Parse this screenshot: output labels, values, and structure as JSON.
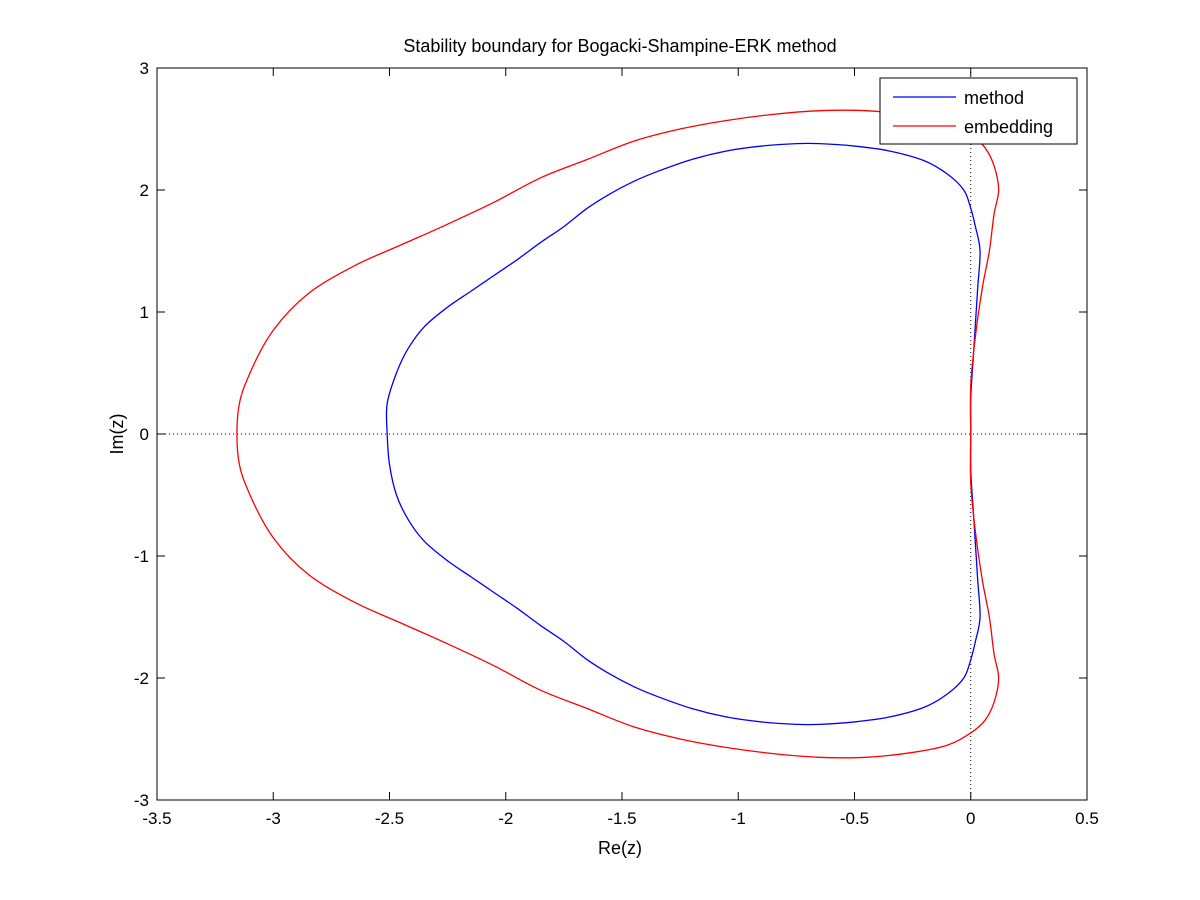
{
  "chart_data": {
    "type": "line",
    "title": "Stability boundary for Bogacki-Shampine-ERK method",
    "xlabel": "Re(z)",
    "ylabel": "Im(z)",
    "xlim": [
      -3.5,
      0.5
    ],
    "ylim": [
      -3,
      3
    ],
    "xticks": [
      -3.5,
      -3,
      -2.5,
      -2,
      -1.5,
      -1,
      -0.5,
      0,
      0.5
    ],
    "xtick_labels": [
      "-3.5",
      "-3",
      "-2.5",
      "-2",
      "-1.5",
      "-1",
      "-0.5",
      "0",
      "0.5"
    ],
    "yticks": [
      -3,
      -2,
      -1,
      0,
      1,
      2,
      3
    ],
    "ytick_labels": [
      "-3",
      "-2",
      "-1",
      "0",
      "1",
      "2",
      "3"
    ],
    "grid": false,
    "legend_position": "top-right",
    "reference_lines": {
      "x_axis_dotted": true,
      "y_axis_dotted": true
    },
    "series": [
      {
        "name": "method",
        "color": "#0000ff",
        "x": [
          0.0,
          0.0,
          0.01,
          0.02,
          0.03,
          0.04,
          0.02,
          0.0,
          -0.03,
          -0.1,
          -0.2,
          -0.35,
          -0.5,
          -0.65,
          -0.75,
          -0.9,
          -1.05,
          -1.2,
          -1.35,
          -1.45,
          -1.55,
          -1.65,
          -1.75,
          -1.85,
          -1.95,
          -2.05,
          -2.15,
          -2.25,
          -2.35,
          -2.42,
          -2.47,
          -2.51,
          -2.51,
          -2.5,
          -2.47,
          -2.42,
          -2.35,
          -2.25,
          -2.15,
          -2.05,
          -1.95,
          -1.85,
          -1.75,
          -1.65,
          -1.55,
          -1.45,
          -1.35,
          -1.2,
          -1.05,
          -0.9,
          -0.75,
          -0.65,
          -0.5,
          -0.35,
          -0.2,
          -0.1,
          -0.03,
          0.0,
          0.02,
          0.04,
          0.03,
          0.02,
          0.01,
          0.0,
          0.0
        ],
        "y": [
          0.0,
          0.3,
          0.6,
          0.9,
          1.2,
          1.5,
          1.7,
          1.85,
          2.0,
          2.13,
          2.24,
          2.32,
          2.36,
          2.38,
          2.38,
          2.36,
          2.32,
          2.25,
          2.15,
          2.07,
          1.97,
          1.85,
          1.7,
          1.57,
          1.43,
          1.3,
          1.17,
          1.04,
          0.88,
          0.7,
          0.5,
          0.25,
          0.0,
          -0.25,
          -0.5,
          -0.7,
          -0.88,
          -1.04,
          -1.17,
          -1.3,
          -1.43,
          -1.57,
          -1.7,
          -1.85,
          -1.97,
          -2.07,
          -2.15,
          -2.25,
          -2.32,
          -2.36,
          -2.38,
          -2.38,
          -2.36,
          -2.32,
          -2.24,
          -2.13,
          -2.0,
          -1.85,
          -1.7,
          -1.5,
          -1.2,
          -0.9,
          -0.6,
          -0.3,
          0.0
        ]
      },
      {
        "name": "embedding",
        "color": "#ff0000",
        "x": [
          0.0,
          0.0,
          0.02,
          0.05,
          0.08,
          0.1,
          0.12,
          0.1,
          0.06,
          0.0,
          -0.1,
          -0.25,
          -0.45,
          -0.65,
          -0.85,
          -1.05,
          -1.25,
          -1.45,
          -1.65,
          -1.85,
          -2.05,
          -2.25,
          -2.45,
          -2.65,
          -2.85,
          -3.0,
          -3.1,
          -3.15,
          -3.15,
          -3.1,
          -3.0,
          -2.85,
          -2.65,
          -2.45,
          -2.25,
          -2.05,
          -1.85,
          -1.65,
          -1.45,
          -1.25,
          -1.05,
          -0.85,
          -0.65,
          -0.45,
          -0.25,
          -0.1,
          0.0,
          0.06,
          0.1,
          0.12,
          0.1,
          0.08,
          0.05,
          0.02,
          0.0,
          0.0
        ],
        "y": [
          0.0,
          0.4,
          0.8,
          1.2,
          1.5,
          1.8,
          2.0,
          2.2,
          2.35,
          2.45,
          2.55,
          2.61,
          2.65,
          2.65,
          2.62,
          2.57,
          2.5,
          2.4,
          2.25,
          2.1,
          1.9,
          1.72,
          1.55,
          1.38,
          1.15,
          0.85,
          0.5,
          0.2,
          -0.2,
          -0.5,
          -0.85,
          -1.15,
          -1.38,
          -1.55,
          -1.72,
          -1.9,
          -2.1,
          -2.25,
          -2.4,
          -2.5,
          -2.57,
          -2.62,
          -2.65,
          -2.65,
          -2.61,
          -2.55,
          -2.45,
          -2.35,
          -2.2,
          -2.0,
          -1.8,
          -1.5,
          -1.2,
          -0.8,
          -0.4,
          0.0
        ]
      }
    ]
  }
}
